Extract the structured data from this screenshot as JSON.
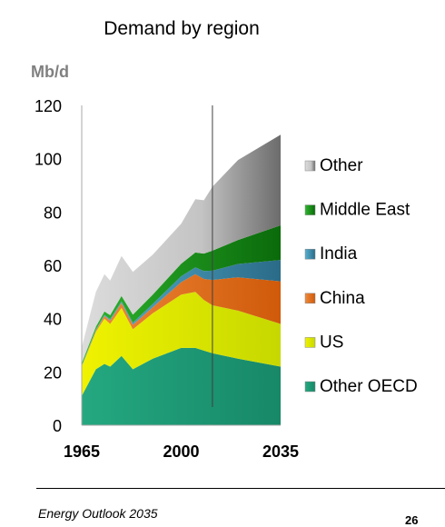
{
  "chart_data": {
    "type": "area",
    "title": "Demand by region",
    "ylabel": "Mb/d",
    "xlabel": "",
    "xlim": [
      1965,
      2035
    ],
    "ylim": [
      0,
      120
    ],
    "y_ticks": [
      0,
      20,
      40,
      60,
      80,
      100,
      120
    ],
    "x_ticks": [
      1965,
      2000,
      2035
    ],
    "x_tick_labels": [
      "1965",
      "2000",
      "2035"
    ],
    "projection_start": 2011,
    "stacking_order": [
      "Other OECD",
      "US",
      "China",
      "India",
      "Middle East",
      "Other"
    ],
    "legend_order": [
      "Other",
      "Middle East",
      "India",
      "China",
      "US",
      "Other OECD"
    ],
    "legend_position": "right",
    "grid": false,
    "x": [
      1965,
      1970,
      1973,
      1975,
      1979,
      1983,
      1990,
      2000,
      2005,
      2008,
      2011,
      2020,
      2035
    ],
    "series": [
      {
        "name": "Other OECD",
        "color": "#1f9e73",
        "values": [
          11,
          21,
          23,
          22,
          26,
          21,
          25,
          29,
          29,
          28,
          27,
          25,
          22
        ]
      },
      {
        "name": "US",
        "color": "#d7e600",
        "values": [
          11,
          14,
          17,
          16,
          18,
          15,
          17,
          20,
          21,
          19,
          18,
          18,
          16
        ]
      },
      {
        "name": "China",
        "color": "#e0620f",
        "values": [
          0.2,
          0.6,
          1,
          1.3,
          1.9,
          1.7,
          2.3,
          4.7,
          6.7,
          7.9,
          9.5,
          12.5,
          16
        ]
      },
      {
        "name": "India",
        "color": "#2d87a6",
        "values": [
          0.2,
          0.3,
          0.4,
          0.5,
          0.6,
          0.8,
          1.2,
          2.2,
          2.5,
          3,
          3.5,
          5,
          8
        ]
      },
      {
        "name": "Middle East",
        "color": "#109010",
        "values": [
          0.9,
          1.1,
          1.3,
          1.5,
          2,
          3,
          3.5,
          4.7,
          5.6,
          6.5,
          7.5,
          9,
          13
        ]
      },
      {
        "name": "Other",
        "color": "#b0b0b0",
        "values": [
          6,
          13,
          14,
          13,
          15,
          16,
          15,
          15,
          20,
          20,
          24,
          30,
          34
        ]
      }
    ]
  },
  "footer": {
    "left": "Energy Outlook 2035",
    "page": "26"
  }
}
